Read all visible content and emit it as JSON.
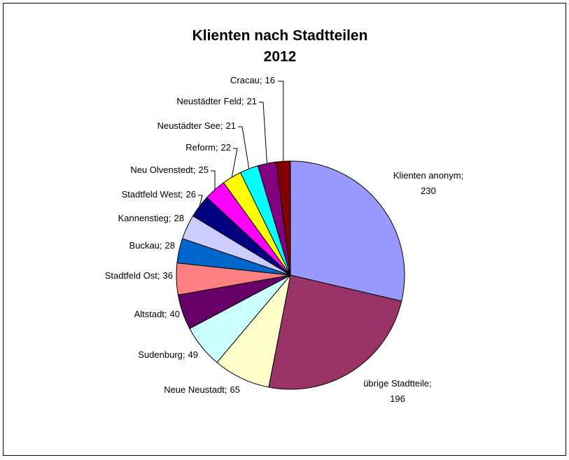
{
  "chart_data": {
    "type": "pie",
    "title": "Klienten nach Stadtteilen",
    "subtitle": "2012",
    "categories": [
      "Klienten anonym;",
      "übrige Stadtteile;",
      "Neue Neustadt;",
      "Sudenburg;",
      "Altstadt;",
      "Stadtfeld Ost;",
      "Buckau;",
      "Kannenstieg;",
      "Stadtfeld West;",
      "Neu Olvenstedt;",
      "Reform;",
      "Neustädter See;",
      "Neustädter Feld;",
      "Cracau;"
    ],
    "values": [
      230,
      196,
      65,
      49,
      40,
      36,
      28,
      28,
      26,
      25,
      22,
      21,
      21,
      16
    ],
    "colors": [
      "#9999ff",
      "#993366",
      "#ffffcc",
      "#ccffff",
      "#660066",
      "#ff8080",
      "#0066cc",
      "#ccccff",
      "#000080",
      "#ff00ff",
      "#ffff00",
      "#00ffff",
      "#800080",
      "#800000"
    ]
  }
}
